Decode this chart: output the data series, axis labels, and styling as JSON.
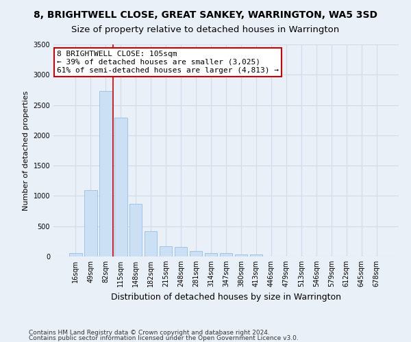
{
  "title": "8, BRIGHTWELL CLOSE, GREAT SANKEY, WARRINGTON, WA5 3SD",
  "subtitle": "Size of property relative to detached houses in Warrington",
  "xlabel": "Distribution of detached houses by size in Warrington",
  "ylabel": "Number of detached properties",
  "categories": [
    "16sqm",
    "49sqm",
    "82sqm",
    "115sqm",
    "148sqm",
    "182sqm",
    "215sqm",
    "248sqm",
    "281sqm",
    "314sqm",
    "347sqm",
    "380sqm",
    "413sqm",
    "446sqm",
    "479sqm",
    "513sqm",
    "546sqm",
    "579sqm",
    "612sqm",
    "645sqm",
    "678sqm"
  ],
  "values": [
    55,
    1100,
    2730,
    2290,
    870,
    420,
    165,
    160,
    90,
    60,
    55,
    35,
    30,
    5,
    0,
    0,
    0,
    0,
    0,
    0,
    0
  ],
  "bar_color": "#cce0f5",
  "bar_edge_color": "#a0c4e8",
  "vline_color": "#cc0000",
  "vline_x_index": 2,
  "annotation_text": "8 BRIGHTWELL CLOSE: 105sqm\n← 39% of detached houses are smaller (3,025)\n61% of semi-detached houses are larger (4,813) →",
  "annotation_box_color": "#ffffff",
  "annotation_box_edge_color": "#cc0000",
  "ylim": [
    0,
    3500
  ],
  "yticks": [
    0,
    500,
    1000,
    1500,
    2000,
    2500,
    3000,
    3500
  ],
  "footer1": "Contains HM Land Registry data © Crown copyright and database right 2024.",
  "footer2": "Contains public sector information licensed under the Open Government Licence v3.0.",
  "bg_color": "#eaf0f8",
  "grid_color": "#d0dce8",
  "title_fontsize": 10,
  "subtitle_fontsize": 9.5,
  "xlabel_fontsize": 9,
  "ylabel_fontsize": 8,
  "tick_fontsize": 7,
  "annotation_fontsize": 8,
  "footer_fontsize": 6.5
}
